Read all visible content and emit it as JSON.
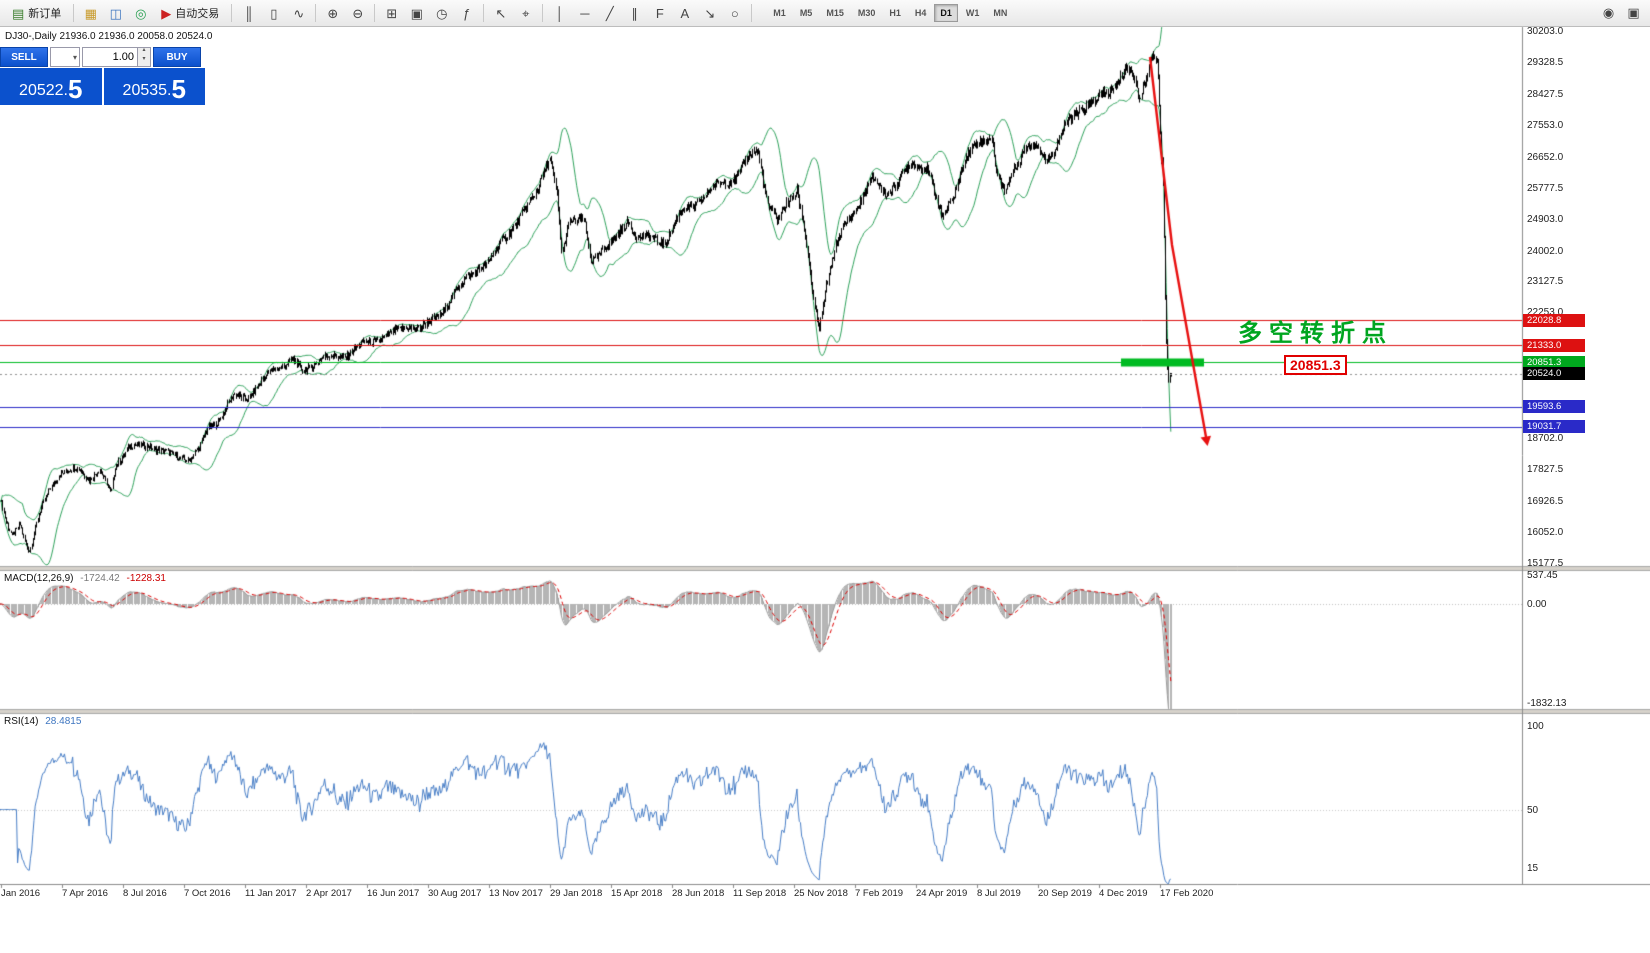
{
  "symbol_header": "DJ30-,Daily  21936.0 21936.0 20058.0 20524.0",
  "toolbar": {
    "groups": [
      {
        "items": [
          {
            "name": "new-order-button",
            "glyph": "▤",
            "glyph_color": "#3a7d2c",
            "label": "新订单"
          }
        ]
      },
      {
        "items": [
          {
            "name": "market-watch-icon",
            "glyph": "▦",
            "glyph_color": "#c89a2a"
          },
          {
            "name": "profiles-icon",
            "glyph": "◫",
            "glyph_color": "#3e76c0"
          },
          {
            "name": "navigator-icon",
            "glyph": "◎",
            "glyph_color": "#2aa052"
          },
          {
            "name": "autotrading-button",
            "glyph": "▶",
            "glyph_color": "#cc2222",
            "label": "自动交易"
          }
        ]
      },
      {
        "items": [
          {
            "name": "chart-bars-icon",
            "glyph": "║"
          },
          {
            "name": "chart-candles-icon",
            "glyph": "▯"
          },
          {
            "name": "chart-line-icon",
            "glyph": "∿"
          }
        ]
      },
      {
        "items": [
          {
            "name": "zoom-in-icon",
            "glyph": "⊕"
          },
          {
            "name": "zoom-out-icon",
            "glyph": "⊖"
          }
        ]
      },
      {
        "items": [
          {
            "name": "tile-windows-icon",
            "glyph": "⊞"
          },
          {
            "name": "new-chart-icon",
            "glyph": "▣"
          },
          {
            "name": "cycles-icon",
            "glyph": "◷"
          },
          {
            "name": "indicators-icon",
            "glyph": "ƒ"
          }
        ]
      },
      {
        "items": [
          {
            "name": "cursor-icon",
            "glyph": "↖"
          },
          {
            "name": "crosshair-icon",
            "glyph": "⌖"
          }
        ]
      },
      {
        "items": [
          {
            "name": "vertical-line-icon",
            "glyph": "│"
          },
          {
            "name": "horizontal-line-icon",
            "glyph": "─"
          },
          {
            "name": "trendline-icon",
            "glyph": "╱"
          },
          {
            "name": "channel-icon",
            "glyph": "∥"
          },
          {
            "name": "fibonacci-icon",
            "glyph": "F"
          },
          {
            "name": "text-icon",
            "glyph": "A"
          },
          {
            "name": "arrow-tool-icon",
            "glyph": "↘"
          },
          {
            "name": "shapes-icon",
            "glyph": "○"
          }
        ]
      }
    ],
    "timeframes": [
      "M1",
      "M5",
      "M15",
      "M30",
      "H1",
      "H4",
      "D1",
      "W1",
      "MN"
    ],
    "active_timeframe": "D1",
    "right_icons": [
      {
        "name": "chart-shift-icon",
        "glyph": "◉"
      },
      {
        "name": "auto-scroll-icon",
        "glyph": "▣"
      }
    ]
  },
  "trade_panel": {
    "sell_label": "SELL",
    "buy_label": "BUY",
    "volume": "1.00",
    "sell_price": "20522.",
    "sell_price_big": "5",
    "buy_price": "20535.",
    "buy_price_big": "5"
  },
  "annotations": {
    "turning_point_text": "多空转折点",
    "price_tag": "20851.3"
  },
  "chart_data": {
    "type": "candlestick",
    "symbol": "DJ30-",
    "timeframe": "Daily",
    "ohlc": {
      "open": 21936.0,
      "high": 21936.0,
      "low": 20058.0,
      "close": 20524.0
    },
    "ylim": [
      15092,
      30315
    ],
    "keypoints": {
      "m": [
        0,
        0.3,
        0.6,
        1.0,
        1.3,
        1.5,
        2.0,
        2.5,
        3.0,
        4.0,
        4.5,
        5.0,
        5.6,
        5.8,
        6.5,
        7.5,
        8.5,
        9.5,
        10.0,
        10.5,
        11.0,
        11.8,
        12.5,
        13.5,
        14.3,
        14.7,
        15.5,
        16.5,
        17.3,
        18.3,
        19.0,
        19.5,
        20.5,
        21.5,
        22.3,
        22.8,
        23.5,
        24.3,
        24.8,
        25.1,
        25.3,
        25.6,
        26.2,
        26.5,
        27.0,
        27.5,
        28.0,
        28.4,
        29.0,
        29.5,
        30.2,
        31.0,
        31.8,
        32.5,
        33.0,
        33.3,
        33.7,
        34.1,
        34.5,
        34.9,
        35.2,
        35.6,
        35.8,
        36.1,
        36.5,
        37.0,
        37.5,
        38.0,
        38.5,
        39.0,
        39.6,
        40.2,
        40.8,
        41.3,
        41.8,
        42.3,
        42.8,
        43.1,
        43.4,
        43.7,
        44.2,
        44.7,
        45.1,
        45.5,
        46.0,
        46.5,
        47.0,
        47.5,
        48.0,
        48.3,
        48.6,
        48.9,
        49.2,
        49.45,
        49.6,
        49.75,
        49.85,
        49.95,
        50.05,
        50.1
      ],
      "close": [
        17000,
        16300,
        15900,
        16300,
        15700,
        15550,
        16600,
        17300,
        17700,
        17850,
        17550,
        17800,
        17150,
        17950,
        18450,
        18500,
        18250,
        18100,
        18350,
        19000,
        19200,
        19900,
        19850,
        20650,
        20900,
        20600,
        20950,
        21050,
        21400,
        21600,
        21900,
        21750,
        22350,
        23350,
        23600,
        24300,
        24750,
        25800,
        26550,
        25500,
        23900,
        24900,
        24800,
        23650,
        24100,
        24300,
        24850,
        24400,
        24300,
        24250,
        25100,
        25450,
        25950,
        26100,
        26750,
        26900,
        25300,
        24800,
        25400,
        25750,
        24550,
        22400,
        21800,
        23100,
        24150,
        24900,
        25450,
        26000,
        25650,
        25900,
        26500,
        26350,
        24900,
        25650,
        26600,
        27100,
        27250,
        26000,
        25650,
        26300,
        26900,
        26950,
        26600,
        27000,
        27650,
        28050,
        28150,
        28450,
        28750,
        29100,
        28950,
        28350,
        29100,
        29500,
        29350,
        27000,
        25400,
        21800,
        20200,
        20524
      ]
    },
    "indicators": {
      "bollinger": {
        "period": 20,
        "deviation": 2,
        "color": "#2fa35c"
      },
      "macd": {
        "label": "MACD(12,26,9)",
        "value_main": "-1724.42",
        "value_signal": "-1228.31",
        "ticks": [
          "537.45",
          "0.00",
          "-1832.13"
        ]
      },
      "rsi": {
        "label": "RSI(14)",
        "value": "28.4815",
        "ticks": [
          "100",
          "50",
          "15"
        ]
      }
    },
    "levels": [
      {
        "price": 22028.8,
        "label": "22028.8",
        "line_color": "#dd1111",
        "label_bg": "#dd1111",
        "style": "solid"
      },
      {
        "price": 21333.0,
        "label": "21333.0",
        "line_color": "#dd1111",
        "label_bg": "#dd1111",
        "style": "solid"
      },
      {
        "price": 20851.3,
        "label": "20851.3",
        "line_color": "#00bb22",
        "label_bg": "#00a81e",
        "style": "solid",
        "highlight_segment": true
      },
      {
        "price": 20524.0,
        "label": "20524.0",
        "line_color": "#909090",
        "label_bg": "#000000",
        "style": "dashed"
      },
      {
        "price": 19593.6,
        "label": "19593.6",
        "line_color": "#2a2ac8",
        "label_bg": "#2a2ac8",
        "style": "solid"
      },
      {
        "price": 19031.7,
        "label": "19031.7",
        "line_color": "#2a2ac8",
        "label_bg": "#2a2ac8",
        "style": "solid"
      }
    ],
    "price_ticks": [
      "30203.0",
      "29328.5",
      "28427.5",
      "27553.0",
      "26652.0",
      "25777.5",
      "24903.0",
      "24002.0",
      "23127.5",
      "22253.0",
      "18702.0",
      "17827.5",
      "16926.5",
      "16052.0",
      "15177.5"
    ],
    "dates": [
      "Jan 2016",
      "7 Apr 2016",
      "8 Jul 2016",
      "7 Oct 2016",
      "11 Jan 2017",
      "2 Apr 2017",
      "16 Jun 2017",
      "30 Aug 2017",
      "13 Nov 2017",
      "29 Jan 2018",
      "15 Apr 2018",
      "28 Jun 2018",
      "11 Sep 2018",
      "25 Nov 2018",
      "7 Feb 2019",
      "24 Apr 2019",
      "8 Jul 2019",
      "20 Sep 2019",
      "4 Dec 2019",
      "17 Feb 2020"
    ]
  }
}
